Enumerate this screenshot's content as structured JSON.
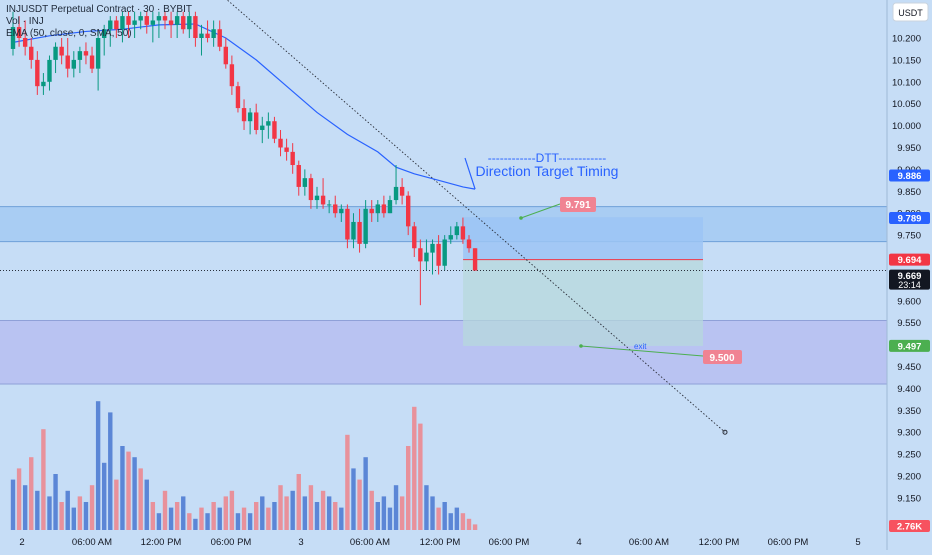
{
  "legend": {
    "title": "INJUSDT Perpetual Contract · 30 · BYBIT",
    "volume": "Vol · INJ",
    "ema": "EMA (50, close, 0, SMA, 50)"
  },
  "price_axis": {
    "currency": "USDT",
    "ticks": [
      "10.200",
      "10.150",
      "10.100",
      "10.050",
      "10.000",
      "9.950",
      "9.900",
      "9.850",
      "9.800",
      "9.750",
      "9.700",
      "9.650",
      "9.600",
      "9.550",
      "9.500",
      "9.450",
      "9.400",
      "9.350",
      "9.300",
      "9.250",
      "9.200",
      "9.150"
    ]
  },
  "time_axis": {
    "labels": [
      "2",
      "06:00 AM",
      "12:00 PM",
      "06:00 PM",
      "3",
      "06:00 AM",
      "12:00 PM",
      "06:00 PM",
      "4",
      "06:00 AM",
      "12:00 PM",
      "06:00 PM",
      "5"
    ]
  },
  "price_badges": [
    {
      "text": "9.886",
      "color": "#2962ff"
    },
    {
      "text": "9.789",
      "color": "#2962ff"
    },
    {
      "text": "9.694",
      "color": "#f23645"
    },
    {
      "text": "9.669",
      "sub": "23:14",
      "color": "#131722"
    },
    {
      "text": "9.497",
      "color": "#4caf50"
    },
    {
      "text": "2.76K",
      "color": "#f7525f"
    }
  ],
  "annotations": {
    "dtt_dashes": "------------DTT------------",
    "dtt_title": "Direction Target Timing",
    "target_label": "9.791",
    "exit_label": "9.500",
    "exit_text": "exit"
  },
  "colors": {
    "background": "#c6ddf6",
    "up_candle": "#089981",
    "down_candle": "#f23645",
    "volume_up": "#5b86d6",
    "volume_down": "#e8919b",
    "ema": "#2962ff",
    "zone_upper": "#a9cdf3",
    "zone_lower": "#b9c3f2",
    "position_profit": "#9cc4f5",
    "position_stop": "#b7d8dc"
  },
  "chart_data": {
    "type": "candlestick",
    "title": "INJUSDT Perpetual Contract · 30 · BYBIT",
    "ylim": [
      9.11,
      10.26
    ],
    "x_ticks": [
      "2",
      "06:00 AM",
      "12:00 PM",
      "06:00 PM",
      "3",
      "06:00 AM",
      "12:00 PM",
      "06:00 PM",
      "4",
      "06:00 AM",
      "12:00 PM",
      "06:00 PM",
      "5"
    ],
    "candles": [
      {
        "o": 10.175,
        "h": 10.26,
        "l": 10.16,
        "c": 10.225
      },
      {
        "o": 10.225,
        "h": 10.25,
        "l": 10.18,
        "c": 10.2
      },
      {
        "o": 10.2,
        "h": 10.24,
        "l": 10.16,
        "c": 10.18
      },
      {
        "o": 10.18,
        "h": 10.2,
        "l": 10.13,
        "c": 10.15
      },
      {
        "o": 10.15,
        "h": 10.17,
        "l": 10.07,
        "c": 10.09
      },
      {
        "o": 10.09,
        "h": 10.12,
        "l": 10.07,
        "c": 10.1
      },
      {
        "o": 10.1,
        "h": 10.16,
        "l": 10.08,
        "c": 10.15
      },
      {
        "o": 10.15,
        "h": 10.19,
        "l": 10.12,
        "c": 10.18
      },
      {
        "o": 10.18,
        "h": 10.2,
        "l": 10.14,
        "c": 10.16
      },
      {
        "o": 10.16,
        "h": 10.2,
        "l": 10.11,
        "c": 10.13
      },
      {
        "o": 10.13,
        "h": 10.17,
        "l": 10.11,
        "c": 10.15
      },
      {
        "o": 10.15,
        "h": 10.18,
        "l": 10.12,
        "c": 10.17
      },
      {
        "o": 10.17,
        "h": 10.19,
        "l": 10.14,
        "c": 10.16
      },
      {
        "o": 10.16,
        "h": 10.18,
        "l": 10.12,
        "c": 10.13
      },
      {
        "o": 10.13,
        "h": 10.22,
        "l": 10.08,
        "c": 10.2
      },
      {
        "o": 10.2,
        "h": 10.23,
        "l": 10.16,
        "c": 10.22
      },
      {
        "o": 10.22,
        "h": 10.25,
        "l": 10.18,
        "c": 10.24
      },
      {
        "o": 10.24,
        "h": 10.25,
        "l": 10.2,
        "c": 10.22
      },
      {
        "o": 10.22,
        "h": 10.26,
        "l": 10.19,
        "c": 10.25
      },
      {
        "o": 10.25,
        "h": 10.26,
        "l": 10.2,
        "c": 10.23
      },
      {
        "o": 10.23,
        "h": 10.26,
        "l": 10.2,
        "c": 10.24
      },
      {
        "o": 10.24,
        "h": 10.26,
        "l": 10.22,
        "c": 10.25
      },
      {
        "o": 10.25,
        "h": 10.26,
        "l": 10.21,
        "c": 10.23
      },
      {
        "o": 10.23,
        "h": 10.26,
        "l": 10.19,
        "c": 10.24
      },
      {
        "o": 10.24,
        "h": 10.26,
        "l": 10.2,
        "c": 10.25
      },
      {
        "o": 10.25,
        "h": 10.26,
        "l": 10.22,
        "c": 10.24
      },
      {
        "o": 10.24,
        "h": 10.26,
        "l": 10.2,
        "c": 10.23
      },
      {
        "o": 10.23,
        "h": 10.26,
        "l": 10.2,
        "c": 10.25
      },
      {
        "o": 10.25,
        "h": 10.26,
        "l": 10.21,
        "c": 10.22
      },
      {
        "o": 10.22,
        "h": 10.26,
        "l": 10.2,
        "c": 10.25
      },
      {
        "o": 10.25,
        "h": 10.26,
        "l": 10.18,
        "c": 10.2
      },
      {
        "o": 10.2,
        "h": 10.23,
        "l": 10.16,
        "c": 10.21
      },
      {
        "o": 10.21,
        "h": 10.24,
        "l": 10.19,
        "c": 10.2
      },
      {
        "o": 10.2,
        "h": 10.24,
        "l": 10.18,
        "c": 10.22
      },
      {
        "o": 10.22,
        "h": 10.24,
        "l": 10.17,
        "c": 10.18
      },
      {
        "o": 10.18,
        "h": 10.2,
        "l": 10.13,
        "c": 10.14
      },
      {
        "o": 10.14,
        "h": 10.16,
        "l": 10.07,
        "c": 10.09
      },
      {
        "o": 10.09,
        "h": 10.1,
        "l": 10.03,
        "c": 10.04
      },
      {
        "o": 10.04,
        "h": 10.06,
        "l": 9.99,
        "c": 10.01
      },
      {
        "o": 10.01,
        "h": 10.04,
        "l": 9.98,
        "c": 10.03
      },
      {
        "o": 10.03,
        "h": 10.05,
        "l": 9.98,
        "c": 9.99
      },
      {
        "o": 9.99,
        "h": 10.02,
        "l": 9.96,
        "c": 10.0
      },
      {
        "o": 10.0,
        "h": 10.03,
        "l": 9.97,
        "c": 10.01
      },
      {
        "o": 10.01,
        "h": 10.02,
        "l": 9.96,
        "c": 9.97
      },
      {
        "o": 9.97,
        "h": 9.99,
        "l": 9.93,
        "c": 9.95
      },
      {
        "o": 9.95,
        "h": 9.97,
        "l": 9.92,
        "c": 9.94
      },
      {
        "o": 9.94,
        "h": 9.96,
        "l": 9.89,
        "c": 9.91
      },
      {
        "o": 9.91,
        "h": 9.92,
        "l": 9.84,
        "c": 9.86
      },
      {
        "o": 9.86,
        "h": 9.9,
        "l": 9.84,
        "c": 9.88
      },
      {
        "o": 9.88,
        "h": 9.89,
        "l": 9.81,
        "c": 9.83
      },
      {
        "o": 9.83,
        "h": 9.86,
        "l": 9.81,
        "c": 9.84
      },
      {
        "o": 9.84,
        "h": 9.88,
        "l": 9.81,
        "c": 9.82
      },
      {
        "o": 9.82,
        "h": 9.83,
        "l": 9.8,
        "c": 9.82
      },
      {
        "o": 9.82,
        "h": 9.84,
        "l": 9.79,
        "c": 9.8
      },
      {
        "o": 9.8,
        "h": 9.82,
        "l": 9.78,
        "c": 9.81
      },
      {
        "o": 9.81,
        "h": 9.82,
        "l": 9.72,
        "c": 9.74
      },
      {
        "o": 9.74,
        "h": 9.8,
        "l": 9.72,
        "c": 9.78
      },
      {
        "o": 9.78,
        "h": 9.81,
        "l": 9.71,
        "c": 9.73
      },
      {
        "o": 9.73,
        "h": 9.83,
        "l": 9.72,
        "c": 9.81
      },
      {
        "o": 9.81,
        "h": 9.83,
        "l": 9.78,
        "c": 9.8
      },
      {
        "o": 9.8,
        "h": 9.83,
        "l": 9.78,
        "c": 9.82
      },
      {
        "o": 9.82,
        "h": 9.84,
        "l": 9.79,
        "c": 9.8
      },
      {
        "o": 9.8,
        "h": 9.84,
        "l": 9.8,
        "c": 9.83
      },
      {
        "o": 9.83,
        "h": 9.91,
        "l": 9.82,
        "c": 9.86
      },
      {
        "o": 9.86,
        "h": 9.88,
        "l": 9.82,
        "c": 9.84
      },
      {
        "o": 9.84,
        "h": 9.85,
        "l": 9.75,
        "c": 9.77
      },
      {
        "o": 9.77,
        "h": 9.78,
        "l": 9.7,
        "c": 9.72
      },
      {
        "o": 9.72,
        "h": 9.74,
        "l": 9.59,
        "c": 9.69
      },
      {
        "o": 9.69,
        "h": 9.74,
        "l": 9.67,
        "c": 9.71
      },
      {
        "o": 9.71,
        "h": 9.74,
        "l": 9.66,
        "c": 9.73
      },
      {
        "o": 9.73,
        "h": 9.75,
        "l": 9.66,
        "c": 9.68
      },
      {
        "o": 9.68,
        "h": 9.75,
        "l": 9.67,
        "c": 9.74
      },
      {
        "o": 9.74,
        "h": 9.77,
        "l": 9.73,
        "c": 9.75
      },
      {
        "o": 9.75,
        "h": 9.78,
        "l": 9.74,
        "c": 9.77
      },
      {
        "o": 9.77,
        "h": 9.79,
        "l": 9.73,
        "c": 9.74
      },
      {
        "o": 9.74,
        "h": 9.75,
        "l": 9.71,
        "c": 9.72
      },
      {
        "o": 9.72,
        "h": 9.72,
        "l": 9.67,
        "c": 9.669
      }
    ],
    "volume": [
      {
        "v": 0.9,
        "up": true
      },
      {
        "v": 1.1,
        "up": false
      },
      {
        "v": 0.8,
        "up": true
      },
      {
        "v": 1.3,
        "up": false
      },
      {
        "v": 0.7,
        "up": true
      },
      {
        "v": 1.8,
        "up": false
      },
      {
        "v": 0.6,
        "up": true
      },
      {
        "v": 1.0,
        "up": true
      },
      {
        "v": 0.5,
        "up": false
      },
      {
        "v": 0.7,
        "up": true
      },
      {
        "v": 0.4,
        "up": true
      },
      {
        "v": 0.6,
        "up": false
      },
      {
        "v": 0.5,
        "up": true
      },
      {
        "v": 0.8,
        "up": false
      },
      {
        "v": 2.3,
        "up": true
      },
      {
        "v": 1.2,
        "up": true
      },
      {
        "v": 2.1,
        "up": true
      },
      {
        "v": 0.9,
        "up": false
      },
      {
        "v": 1.5,
        "up": true
      },
      {
        "v": 1.4,
        "up": false
      },
      {
        "v": 1.3,
        "up": true
      },
      {
        "v": 1.1,
        "up": false
      },
      {
        "v": 0.9,
        "up": true
      },
      {
        "v": 0.5,
        "up": false
      },
      {
        "v": 0.3,
        "up": true
      },
      {
        "v": 0.7,
        "up": false
      },
      {
        "v": 0.4,
        "up": true
      },
      {
        "v": 0.5,
        "up": false
      },
      {
        "v": 0.6,
        "up": true
      },
      {
        "v": 0.3,
        "up": false
      },
      {
        "v": 0.2,
        "up": true
      },
      {
        "v": 0.4,
        "up": false
      },
      {
        "v": 0.3,
        "up": true
      },
      {
        "v": 0.5,
        "up": false
      },
      {
        "v": 0.4,
        "up": true
      },
      {
        "v": 0.6,
        "up": false
      },
      {
        "v": 0.7,
        "up": false
      },
      {
        "v": 0.3,
        "up": true
      },
      {
        "v": 0.4,
        "up": false
      },
      {
        "v": 0.3,
        "up": true
      },
      {
        "v": 0.5,
        "up": false
      },
      {
        "v": 0.6,
        "up": true
      },
      {
        "v": 0.4,
        "up": false
      },
      {
        "v": 0.5,
        "up": true
      },
      {
        "v": 0.8,
        "up": false
      },
      {
        "v": 0.6,
        "up": false
      },
      {
        "v": 0.7,
        "up": true
      },
      {
        "v": 1.0,
        "up": false
      },
      {
        "v": 0.6,
        "up": true
      },
      {
        "v": 0.8,
        "up": false
      },
      {
        "v": 0.5,
        "up": true
      },
      {
        "v": 0.7,
        "up": false
      },
      {
        "v": 0.6,
        "up": true
      },
      {
        "v": 0.5,
        "up": false
      },
      {
        "v": 0.4,
        "up": true
      },
      {
        "v": 1.7,
        "up": false
      },
      {
        "v": 1.1,
        "up": true
      },
      {
        "v": 0.9,
        "up": false
      },
      {
        "v": 1.3,
        "up": true
      },
      {
        "v": 0.7,
        "up": false
      },
      {
        "v": 0.5,
        "up": true
      },
      {
        "v": 0.6,
        "up": true
      },
      {
        "v": 0.4,
        "up": true
      },
      {
        "v": 0.8,
        "up": true
      },
      {
        "v": 0.6,
        "up": false
      },
      {
        "v": 1.5,
        "up": false
      },
      {
        "v": 2.2,
        "up": false
      },
      {
        "v": 1.9,
        "up": false
      },
      {
        "v": 0.8,
        "up": true
      },
      {
        "v": 0.6,
        "up": true
      },
      {
        "v": 0.4,
        "up": false
      },
      {
        "v": 0.5,
        "up": true
      },
      {
        "v": 0.3,
        "up": true
      },
      {
        "v": 0.4,
        "up": true
      },
      {
        "v": 0.3,
        "up": false
      },
      {
        "v": 0.2,
        "up": false
      },
      {
        "v": 0.1,
        "up": false
      }
    ],
    "ema50": [
      [
        0,
        10.19
      ],
      [
        6,
        10.205
      ],
      [
        12,
        10.215
      ],
      [
        18,
        10.22
      ],
      [
        24,
        10.23
      ],
      [
        30,
        10.232
      ],
      [
        35,
        10.2
      ],
      [
        40,
        10.15
      ],
      [
        45,
        10.09
      ],
      [
        50,
        10.03
      ],
      [
        55,
        9.98
      ],
      [
        60,
        9.94
      ],
      [
        63,
        9.905
      ],
      [
        66,
        9.89
      ],
      [
        70,
        9.875
      ],
      [
        74,
        9.86
      ],
      [
        76,
        9.855
      ]
    ],
    "levels": {
      "upper_zone": [
        9.735,
        9.815
      ],
      "lower_zone": [
        9.41,
        9.555
      ],
      "target": 9.791,
      "entry": 9.694,
      "stop": 9.497,
      "exit_point": 9.5,
      "current": 9.669,
      "trendline_end": 9.3
    }
  }
}
